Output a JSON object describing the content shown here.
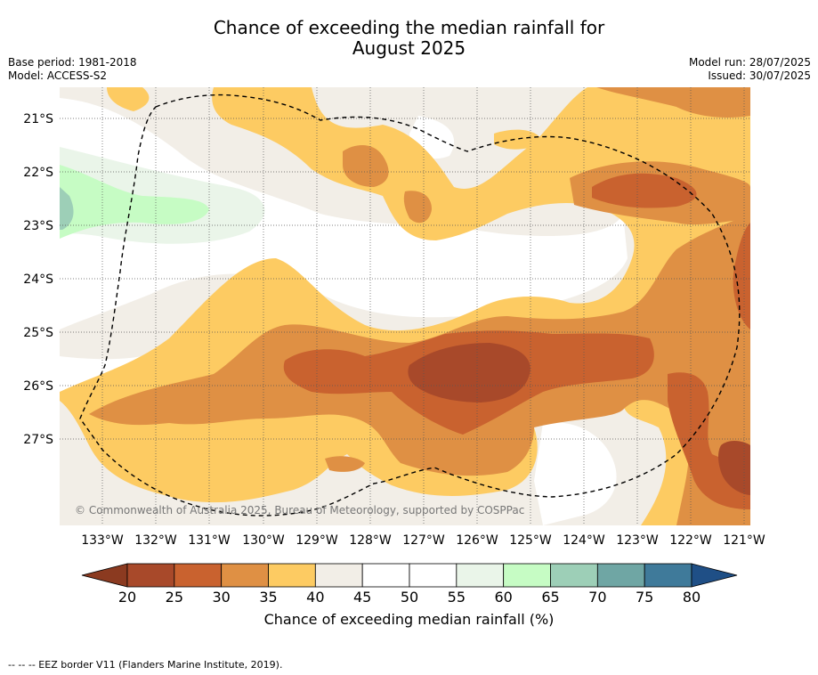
{
  "title": {
    "line1": "Chance of exceeding the median rainfall for",
    "line2": "August 2025"
  },
  "meta_left": {
    "base_period": "Base period: 1981-2018",
    "model": "Model: ACCESS-S2"
  },
  "meta_right": {
    "model_run": "Model run: 28/07/2025",
    "issued": "Issued: 30/07/2025"
  },
  "map": {
    "lat_labels": [
      "21°S",
      "22°S",
      "23°S",
      "24°S",
      "25°S",
      "26°S",
      "27°S"
    ],
    "lon_labels": [
      "133°W",
      "132°W",
      "131°W",
      "130°W",
      "129°W",
      "128°W",
      "127°W",
      "126°W",
      "125°W",
      "124°W",
      "123°W",
      "122°W",
      "121°W"
    ],
    "copyright": "© Commonwealth of Australia 2025, Bureau of Meteorology, supported by COSPPac",
    "gridlines": "dotted"
  },
  "colorbar": {
    "ticks": [
      "20",
      "25",
      "30",
      "35",
      "40",
      "45",
      "50",
      "55",
      "60",
      "65",
      "70",
      "75",
      "80"
    ],
    "colors": [
      "#a8492a",
      "#c9622f",
      "#df9044",
      "#fdcb62",
      "#f2eee7",
      "#ffffff",
      "#ffffff",
      "#eaf5e9",
      "#c6fcc4",
      "#9dcfb7",
      "#6fa6a4",
      "#3f7a9a"
    ],
    "low_extend_color": "#8b3a20",
    "high_extend_color": "#1f4f86",
    "label": "Chance of exceeding median rainfall (%)"
  },
  "footnote": "--  --  -- EEZ border V11 (Flanders Marine Institute, 2019)."
}
